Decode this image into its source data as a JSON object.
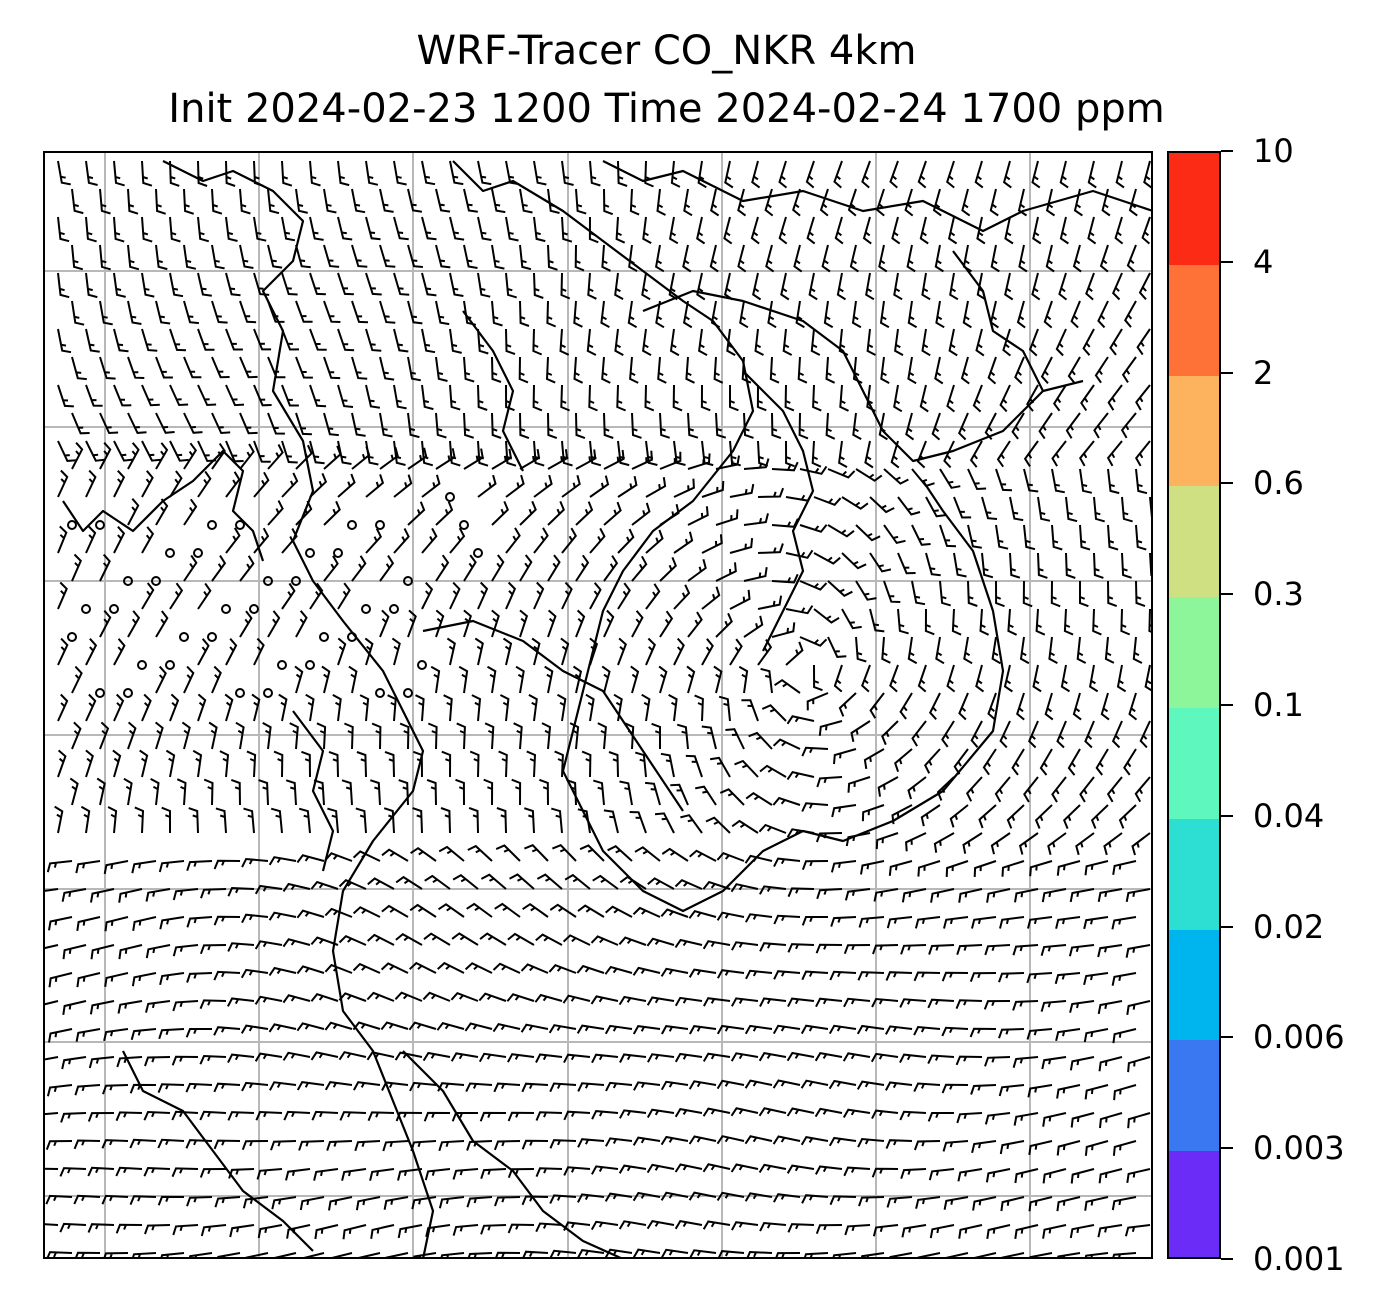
{
  "title": {
    "line1": "WRF-Tracer CO_NKR 4km",
    "line2": "Init 2024-02-23 1200 Time 2024-02-24 1700 ppm"
  },
  "colorbar": {
    "levels": [
      "0.001",
      "0.003",
      "0.006",
      "0.02",
      "0.04",
      "0.1",
      "0.3",
      "0.6",
      "2",
      "4",
      "10"
    ],
    "colors": [
      "#6a2cf6",
      "#3a78f2",
      "#00b4ee",
      "#2ddfd2",
      "#5ef7be",
      "#8ef69a",
      "#cfe083",
      "#fdb25e",
      "#fe7238",
      "#fc2b16"
    ]
  },
  "map": {
    "content": "wind barbs and coastlines",
    "gridlines": true,
    "line_color": "#000000",
    "grid_color": "#b8b8b8"
  }
}
